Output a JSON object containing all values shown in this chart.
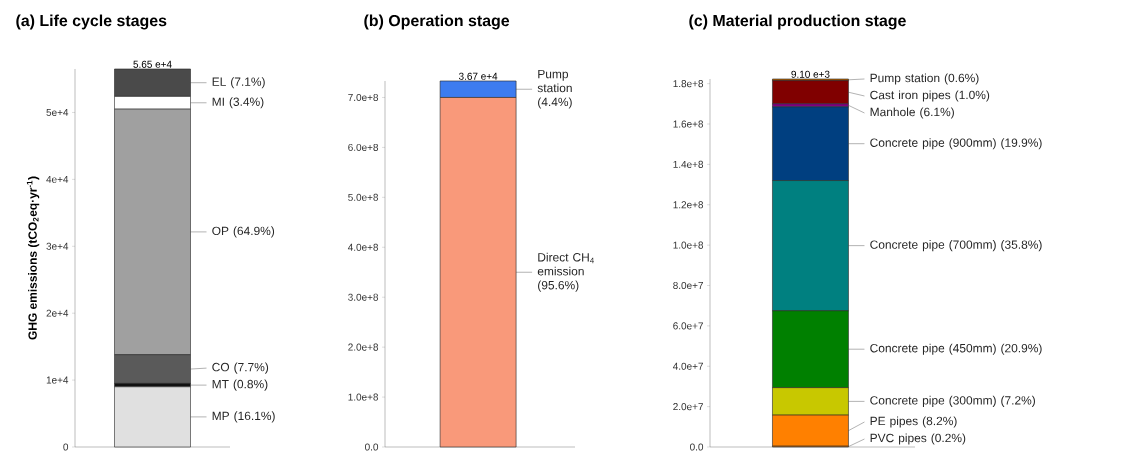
{
  "chart_data": [
    {
      "type": "bar",
      "stacked": true,
      "title": "(a)   Life cycle stages",
      "ylabel": "GHG emissions (tCO$_{2}$eq·yr$^{-1}$)",
      "categories": [
        null
      ],
      "tick_labels": "y",
      "ylim": [
        0,
        56500
      ],
      "yticks": [
        {
          "value": 0,
          "label": "0"
        },
        {
          "value": 10000,
          "label": "1e+4"
        },
        {
          "value": 20000,
          "label": "2e+4"
        },
        {
          "value": 30000,
          "label": "3e+4"
        },
        {
          "value": 40000,
          "label": "4e+4"
        },
        {
          "value": 50000,
          "label": "5e+4"
        }
      ],
      "annotations": [
        "5.65 e+4",
        "MP (16.1%)",
        "MT (0.8%)",
        "CO (7.7%)",
        "OP (64.9%)",
        "MI (3.4%)",
        "EL (7.1%)"
      ],
      "series": [
        {
          "color": "#e0e0e0",
          "values": [
            9000
          ]
        },
        {
          "color": "#111111",
          "values": [
            500
          ]
        },
        {
          "color": "#5a5a5a",
          "values": [
            4300
          ]
        },
        {
          "color": "#a0a0a0",
          "values": [
            36700
          ]
        },
        {
          "color": "#ffffff",
          "values": [
            1900
          ]
        },
        {
          "color": "#4a4a4a",
          "values": [
            4100
          ]
        }
      ]
    },
    {
      "type": "bar",
      "stacked": true,
      "title": "(b)   Operation stage",
      "categories": [
        null
      ],
      "tick_labels": "y",
      "ylim": [
        0,
        733000000
      ],
      "yticks": [
        {
          "value": 0,
          "label": "0.0"
        },
        {
          "value": 100000000,
          "label": "1.0e+8"
        },
        {
          "value": 200000000,
          "label": "2.0e+8"
        },
        {
          "value": 300000000,
          "label": "3.0e+8"
        },
        {
          "value": 400000000,
          "label": "4.0e+8"
        },
        {
          "value": 500000000,
          "label": "5.0e+8"
        },
        {
          "value": 600000000,
          "label": "6.0e+8"
        },
        {
          "value": 700000000,
          "label": "7.0e+8"
        }
      ],
      "annotations": [
        "3.67 e+4",
        "Direct CH$_{4}$ emission (95.6%)",
        "Pump station (4.4%)"
      ],
      "series": [
        {
          "color": "#f9997a",
          "values": [
            700000000
          ]
        },
        {
          "color": "#3d7cf0",
          "values": [
            33000000
          ]
        }
      ]
    },
    {
      "type": "bar",
      "stacked": true,
      "title": "(c)   Material production stage",
      "categories": [
        null
      ],
      "tick_labels": "y",
      "ylim": [
        0,
        182300000
      ],
      "yticks": [
        {
          "value": 0,
          "label": "0.0"
        },
        {
          "value": 20000000,
          "label": "2.0e+7"
        },
        {
          "value": 40000000,
          "label": "4.0e+7"
        },
        {
          "value": 60000000,
          "label": "6.0e+7"
        },
        {
          "value": 80000000,
          "label": "8.0e+7"
        },
        {
          "value": 100000000,
          "label": "1.0e+8"
        },
        {
          "value": 120000000,
          "label": "1.2e+8"
        },
        {
          "value": 140000000,
          "label": "1.4e+8"
        },
        {
          "value": 160000000,
          "label": "1.6e+8"
        },
        {
          "value": 180000000,
          "label": "1.8e+8"
        }
      ],
      "annotations": [
        "9.10 e+3",
        "PVC pipes (0.2%)",
        "PE pipes (8.2%)",
        "Concrete pipe (300mm) (7.2%)",
        "Concrete pipe (450mm) (20.9%)",
        "Concrete pipe (700mm) (35.8%)",
        "Concrete pipe (900mm) (19.9%)",
        "Manhole (6.1%)",
        "Cast iron pipes (1.0%)",
        "Pump station (0.6%)"
      ],
      "series": [
        {
          "color": "#ff8000",
          "values": [
            400000
          ]
        },
        {
          "color": "#ff8000",
          "values": [
            15400000
          ]
        },
        {
          "color": "#c8c800",
          "values": [
            13600000
          ]
        },
        {
          "color": "#008000",
          "values": [
            38100000
          ]
        },
        {
          "color": "#008080",
          "values": [
            64500000
          ]
        },
        {
          "color": "#003f80",
          "values": [
            36500000
          ]
        },
        {
          "color": "#800080",
          "values": [
            1500000
          ]
        },
        {
          "color": "#800000",
          "values": [
            11500000
          ]
        },
        {
          "color": "#b06000",
          "values": [
            800000
          ]
        }
      ]
    }
  ]
}
